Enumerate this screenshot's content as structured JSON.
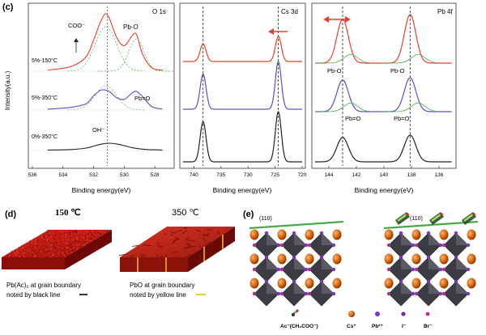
{
  "panel_labels": {
    "c": "(c)",
    "d": "(d)",
    "e": "(e)"
  },
  "colors": {
    "red": "#e8402b",
    "purple": "#5b4fc8",
    "black": "#222222",
    "green": "#4aa84a",
    "orange": "#d86a10"
  },
  "chart_data": [
    {
      "type": "line",
      "title": "O 1s",
      "xlabel": "Binding energy(eV)",
      "ylabel": "Intensity(a.u.)",
      "xlim": [
        536,
        527
      ],
      "xticks": [
        "536",
        "534",
        "532",
        "530",
        "528"
      ],
      "series": [
        {
          "name": "5%-150°C",
          "color": "#e8402b",
          "x": [
            535,
            533.5,
            532.5,
            532,
            531.5,
            531.1,
            530.5,
            530,
            529.5,
            529.2,
            528.8,
            528.2,
            527.5
          ],
          "values": [
            0.02,
            0.08,
            0.25,
            0.55,
            0.9,
            1.0,
            0.6,
            0.45,
            0.62,
            0.65,
            0.3,
            0.06,
            0.02
          ]
        },
        {
          "name": "5%-350°C",
          "color": "#5b4fc8",
          "x": [
            535,
            533.5,
            532.5,
            532,
            531.5,
            531,
            530.5,
            530,
            529.5,
            529.2,
            528.8,
            528.2,
            527.5
          ],
          "values": [
            0.02,
            0.06,
            0.14,
            0.32,
            0.45,
            0.42,
            0.28,
            0.24,
            0.38,
            0.42,
            0.3,
            0.08,
            0.02
          ]
        },
        {
          "name": "0%-350°C",
          "color": "#222222",
          "x": [
            535,
            533.5,
            532.5,
            532,
            531.5,
            531,
            530.5,
            530,
            529.5,
            529,
            528.5,
            528,
            527.5
          ],
          "values": [
            0.02,
            0.04,
            0.1,
            0.18,
            0.26,
            0.3,
            0.27,
            0.2,
            0.12,
            0.07,
            0.04,
            0.03,
            0.02
          ]
        }
      ],
      "annotations": [
        "COO⁻",
        "Pb-O",
        "5%-150°C",
        "5%-350°C",
        "Pb=O",
        "0%-350°C",
        "OH⁻"
      ],
      "vline": 531.1
    },
    {
      "type": "line",
      "title": "Cs 3d",
      "xlabel": "Binding energy(eV)",
      "xlim": [
        742,
        720
      ],
      "xticks": [
        "740",
        "735",
        "730",
        "725",
        "720"
      ],
      "vlines": [
        738.3,
        724.4
      ],
      "series": [
        {
          "name": "5%-150°C",
          "color": "#e8402b",
          "peaks": [
            738.3,
            724.4
          ],
          "heights": [
            0.35,
            0.5
          ]
        },
        {
          "name": "5%-350°C",
          "color": "#5b4fc8",
          "peaks": [
            738.3,
            724.4
          ],
          "heights": [
            0.7,
            0.95
          ]
        },
        {
          "name": "0%-350°C",
          "color": "#222222",
          "peaks": [
            738.3,
            724.4
          ],
          "heights": [
            0.8,
            1.0
          ]
        }
      ]
    },
    {
      "type": "line",
      "title": "Pb 4f",
      "xlabel": "Binding energy(eV)",
      "xlim": [
        145,
        135
      ],
      "xticks": [
        "144",
        "142",
        "140",
        "138",
        "136"
      ],
      "vlines": [
        143.0,
        138.1
      ],
      "series": [
        {
          "name": "5%-150°C",
          "color": "#e8402b",
          "peaks": [
            143.0,
            138.1
          ],
          "heights": [
            0.9,
            1.0
          ]
        },
        {
          "name": "5%-350°C",
          "color": "#5b4fc8",
          "peaks": [
            143.0,
            138.1
          ],
          "heights": [
            0.65,
            0.7
          ]
        },
        {
          "name": "0%-350°C",
          "color": "#222222",
          "peaks": [
            143.0,
            138.1
          ],
          "heights": [
            0.5,
            0.55
          ]
        }
      ],
      "annotations": [
        "Pb-O",
        "Pb-O",
        "Pb=O",
        "Pb=O"
      ]
    }
  ],
  "panel_d": {
    "label_150": "150 ℃",
    "label_350": "350 ℃",
    "caption_left_1": "Pb(Ac)₂ at grain boundary",
    "caption_left_2": "noted by black line",
    "caption_right_1": "PbO at grain boundary",
    "caption_right_2": "noted by yellow line"
  },
  "panel_e": {
    "facet_left": "(110)",
    "facet_right": "(110)",
    "legend": [
      "Ac⁻(CH₃COO⁻)",
      "Cs⁺",
      "Pb²⁺",
      "I⁻",
      "Br⁻"
    ]
  }
}
